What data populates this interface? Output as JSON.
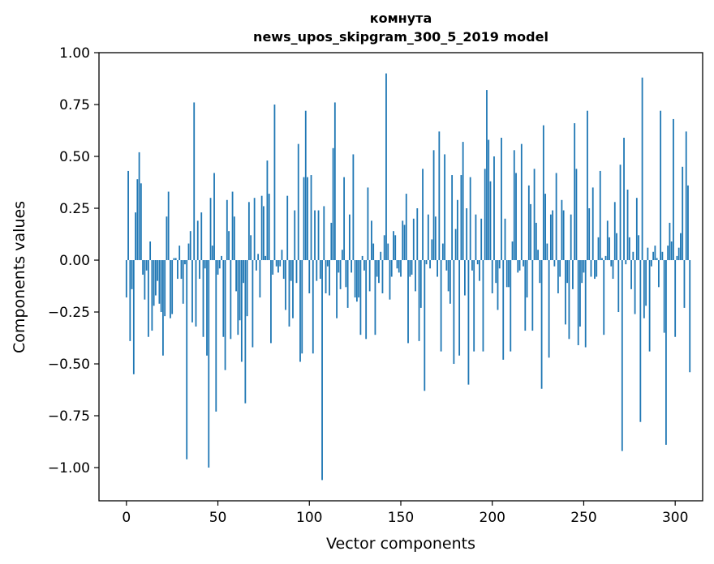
{
  "chart_data": {
    "type": "bar",
    "title_lines": [
      "комнута",
      "news_upos_skipgram_300_5_2019 model"
    ],
    "xlabel": "Vector components",
    "ylabel": "Components values",
    "xlim": [
      -15,
      315
    ],
    "ylim": [
      -1.16,
      1.0
    ],
    "xticks": [
      0,
      50,
      100,
      150,
      200,
      250,
      300
    ],
    "yticks": [
      -1.0,
      -0.75,
      -0.5,
      -0.25,
      0.0,
      0.25,
      0.5,
      0.75,
      1.0
    ],
    "ytick_labels": [
      "−1.00",
      "−0.75",
      "−0.50",
      "−0.25",
      "0.00",
      "0.25",
      "0.50",
      "0.75",
      "1.00"
    ],
    "bar_color": "#1f77b4",
    "grid": false,
    "series": [
      {
        "values": [
          -0.18,
          0.43,
          -0.39,
          -0.14,
          -0.55,
          0.23,
          0.39,
          0.52,
          0.37,
          -0.07,
          -0.19,
          -0.05,
          -0.37,
          0.09,
          -0.34,
          -0.22,
          -0.17,
          -0.1,
          -0.21,
          -0.25,
          -0.46,
          -0.27,
          0.21,
          0.33,
          -0.28,
          -0.26,
          0.01,
          0.01,
          -0.09,
          0.07,
          -0.09,
          -0.21,
          -0.02,
          -0.96,
          0.08,
          0.14,
          -0.3,
          0.76,
          -0.32,
          0.19,
          -0.09,
          0.23,
          -0.37,
          -0.04,
          -0.46,
          -1.0,
          0.3,
          0.07,
          0.42,
          -0.73,
          -0.07,
          -0.04,
          0.02,
          -0.37,
          -0.53,
          0.29,
          0.14,
          -0.38,
          0.33,
          0.21,
          -0.15,
          -0.36,
          -0.29,
          -0.49,
          -0.11,
          -0.69,
          -0.27,
          0.28,
          0.12,
          -0.42,
          0.3,
          -0.05,
          0.03,
          -0.18,
          0.31,
          0.26,
          0.02,
          0.48,
          0.32,
          -0.4,
          -0.07,
          0.75,
          -0.03,
          -0.06,
          -0.03,
          0.05,
          -0.09,
          -0.24,
          0.31,
          -0.32,
          -0.1,
          -0.28,
          0.24,
          -0.11,
          0.56,
          -0.49,
          -0.45,
          0.4,
          0.72,
          0.4,
          -0.16,
          0.41,
          -0.45,
          0.24,
          -0.1,
          0.24,
          -0.09,
          -1.06,
          0.26,
          -0.16,
          -0.03,
          -0.17,
          0.18,
          0.54,
          0.76,
          -0.28,
          -0.06,
          -0.14,
          0.05,
          0.4,
          -0.13,
          -0.23,
          0.22,
          -0.06,
          0.51,
          -0.18,
          -0.2,
          -0.18,
          -0.36,
          0.02,
          -0.05,
          -0.38,
          0.35,
          -0.15,
          0.19,
          0.08,
          -0.36,
          -0.08,
          -0.11,
          0.04,
          -0.16,
          0.12,
          0.9,
          0.08,
          -0.19,
          -0.08,
          0.14,
          0.12,
          -0.04,
          -0.06,
          -0.08,
          0.19,
          0.17,
          0.32,
          -0.4,
          -0.08,
          -0.07,
          0.2,
          -0.15,
          0.25,
          -0.39,
          -0.23,
          0.44,
          -0.63,
          -0.02,
          0.22,
          -0.04,
          0.1,
          0.53,
          0.21,
          -0.08,
          0.62,
          -0.44,
          0.08,
          0.51,
          -0.05,
          -0.15,
          -0.21,
          0.41,
          -0.5,
          0.15,
          0.29,
          -0.46,
          0.41,
          0.57,
          -0.17,
          0.25,
          -0.6,
          0.4,
          -0.05,
          -0.44,
          0.22,
          -0.02,
          -0.1,
          0.2,
          -0.44,
          0.44,
          0.82,
          0.58,
          0.38,
          -0.16,
          0.5,
          -0.11,
          -0.24,
          -0.04,
          0.59,
          -0.48,
          0.2,
          -0.13,
          -0.13,
          -0.44,
          0.09,
          0.53,
          0.42,
          -0.06,
          -0.05,
          0.56,
          -0.03,
          -0.34,
          -0.18,
          0.36,
          0.27,
          -0.34,
          0.44,
          0.18,
          0.05,
          -0.11,
          -0.62,
          0.65,
          0.32,
          0.08,
          -0.47,
          0.22,
          0.24,
          -0.03,
          0.42,
          -0.16,
          -0.08,
          0.29,
          0.24,
          -0.31,
          -0.11,
          -0.38,
          0.22,
          -0.14,
          0.66,
          0.44,
          -0.41,
          -0.32,
          -0.11,
          -0.06,
          -0.42,
          0.72,
          0.25,
          -0.08,
          0.35,
          -0.09,
          -0.08,
          0.11,
          0.43,
          0.01,
          -0.36,
          0.02,
          0.19,
          0.11,
          -0.03,
          -0.09,
          0.28,
          0.13,
          -0.25,
          0.46,
          -0.92,
          0.59,
          -0.02,
          0.34,
          0.11,
          -0.14,
          0.04,
          -0.26,
          0.3,
          0.12,
          -0.78,
          0.88,
          -0.28,
          -0.22,
          0.06,
          -0.44,
          -0.03,
          0.04,
          0.07,
          0.01,
          -0.13,
          0.72,
          0.04,
          -0.35,
          -0.89,
          0.07,
          0.18,
          0.09,
          0.68,
          -0.37,
          0.02,
          0.06,
          0.13,
          0.45,
          -0.23,
          0.62,
          0.36,
          -0.54
        ]
      }
    ]
  }
}
